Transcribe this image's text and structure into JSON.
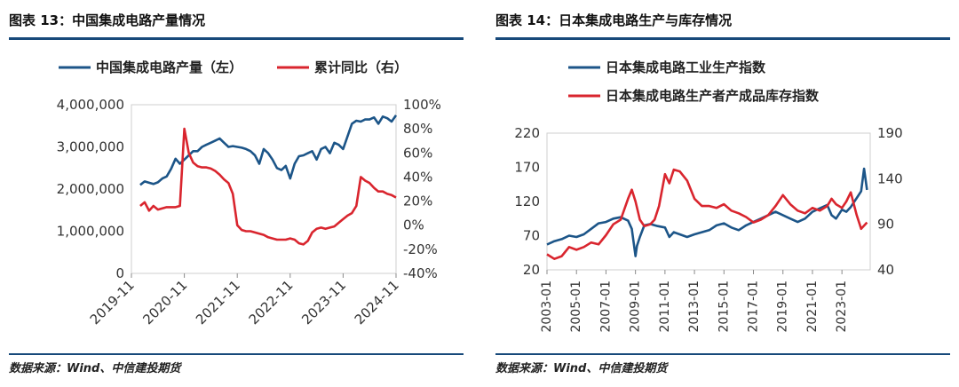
{
  "colors": {
    "blue": "#1c5588",
    "red": "#d9252e",
    "rule": "#17497a",
    "axis": "#9a9a9a"
  },
  "left": {
    "title": "图表 13：中国集成电路产量情况",
    "source": "数据来源：Wind、中信建投期货",
    "chart_data": {
      "type": "line",
      "series": [
        {
          "name": "中国集成电路产量（左）",
          "axis": "left",
          "x": [
            "2020-01",
            "2020-02",
            "2020-03",
            "2020-04",
            "2020-05",
            "2020-06",
            "2020-07",
            "2020-08",
            "2020-09",
            "2020-10",
            "2020-11",
            "2020-12",
            "2021-01",
            "2021-02",
            "2021-03",
            "2021-04",
            "2021-05",
            "2021-06",
            "2021-07",
            "2021-08",
            "2021-09",
            "2021-10",
            "2021-11",
            "2021-12",
            "2022-01",
            "2022-02",
            "2022-03",
            "2022-04",
            "2022-05",
            "2022-06",
            "2022-07",
            "2022-08",
            "2022-09",
            "2022-10",
            "2022-11",
            "2022-12",
            "2023-01",
            "2023-02",
            "2023-03",
            "2023-04",
            "2023-05",
            "2023-06",
            "2023-07",
            "2023-08",
            "2023-09",
            "2023-10",
            "2023-11",
            "2023-12",
            "2024-01",
            "2024-02",
            "2024-03",
            "2024-04",
            "2024-05",
            "2024-06",
            "2024-07",
            "2024-08",
            "2024-09",
            "2024-10",
            "2024-11"
          ],
          "values": [
            2100000,
            2180000,
            2150000,
            2120000,
            2160000,
            2250000,
            2300000,
            2480000,
            2720000,
            2600000,
            2700000,
            2800000,
            2900000,
            2900000,
            3000000,
            3050000,
            3100000,
            3150000,
            3200000,
            3100000,
            3000000,
            3020000,
            3000000,
            2980000,
            2950000,
            2900000,
            2800000,
            2600000,
            2950000,
            2850000,
            2700000,
            2500000,
            2450000,
            2550000,
            2250000,
            2600000,
            2780000,
            2800000,
            2850000,
            2900000,
            2700000,
            2950000,
            3000000,
            2850000,
            3100000,
            3050000,
            2950000,
            3250000,
            3550000,
            3620000,
            3600000,
            3650000,
            3650000,
            3700000,
            3550000,
            3720000,
            3680000,
            3600000,
            3750000
          ]
        },
        {
          "name": "累计同比（右）",
          "axis": "right",
          "x": [
            "2020-01",
            "2020-02",
            "2020-03",
            "2020-04",
            "2020-05",
            "2020-06",
            "2020-07",
            "2020-08",
            "2020-09",
            "2020-10",
            "2020-11",
            "2020-12",
            "2021-01",
            "2021-02",
            "2021-03",
            "2021-04",
            "2021-05",
            "2021-06",
            "2021-07",
            "2021-08",
            "2021-09",
            "2021-10",
            "2021-11",
            "2021-12",
            "2022-01",
            "2022-02",
            "2022-03",
            "2022-04",
            "2022-05",
            "2022-06",
            "2022-07",
            "2022-08",
            "2022-09",
            "2022-10",
            "2022-11",
            "2022-12",
            "2023-01",
            "2023-02",
            "2023-03",
            "2023-04",
            "2023-05",
            "2023-06",
            "2023-07",
            "2023-08",
            "2023-09",
            "2023-10",
            "2023-11",
            "2023-12",
            "2024-01",
            "2024-02",
            "2024-03",
            "2024-04",
            "2024-05",
            "2024-06",
            "2024-07",
            "2024-08",
            "2024-09",
            "2024-10",
            "2024-11"
          ],
          "values": [
            0.16,
            0.19,
            0.12,
            0.16,
            0.13,
            0.14,
            0.15,
            0.15,
            0.15,
            0.16,
            0.8,
            0.6,
            0.52,
            0.49,
            0.48,
            0.48,
            0.47,
            0.45,
            0.42,
            0.38,
            0.35,
            0.26,
            0.0,
            -0.04,
            -0.05,
            -0.05,
            -0.06,
            -0.07,
            -0.08,
            -0.1,
            -0.11,
            -0.12,
            -0.12,
            -0.12,
            -0.11,
            -0.12,
            -0.15,
            -0.16,
            -0.13,
            -0.06,
            -0.03,
            -0.02,
            -0.03,
            -0.02,
            -0.01,
            0.02,
            0.05,
            0.08,
            0.1,
            0.16,
            0.4,
            0.37,
            0.35,
            0.31,
            0.28,
            0.28,
            0.26,
            0.25,
            0.23
          ]
        }
      ],
      "x_ticks": [
        "2019-11",
        "2020-11",
        "2021-11",
        "2022-11",
        "2023-11",
        "2024-11"
      ],
      "y_left": {
        "ticks": [
          "4,000,000",
          "3,000,000",
          "2,000,000",
          "1,000,000",
          "0"
        ],
        "range": [
          0,
          4000000
        ]
      },
      "y_right": {
        "ticks": [
          "100%",
          "80%",
          "60%",
          "40%",
          "20%",
          "0%",
          "-20%",
          "-40%"
        ],
        "range": [
          -0.4,
          1.0
        ]
      },
      "x_range": [
        "2019-11",
        "2024-11"
      ],
      "legend_placement": "top"
    }
  },
  "right": {
    "title": "图表 14：日本集成电路生产与库存情况",
    "source": "数据来源：Wind、中信建投期货",
    "chart_data": {
      "type": "line",
      "series": [
        {
          "name": "日本集成电路工业生产指数",
          "axis": "left",
          "x": [
            2003.0,
            2003.5,
            2004.0,
            2004.5,
            2005.0,
            2005.5,
            2006.0,
            2006.5,
            2007.0,
            2007.5,
            2008.0,
            2008.5,
            2008.75,
            2009.0,
            2009.1,
            2009.3,
            2009.6,
            2010.0,
            2010.5,
            2011.0,
            2011.3,
            2011.6,
            2012.0,
            2012.5,
            2013.0,
            2013.5,
            2014.0,
            2014.5,
            2015.0,
            2015.5,
            2016.0,
            2016.5,
            2017.0,
            2017.5,
            2018.0,
            2018.5,
            2019.0,
            2019.5,
            2020.0,
            2020.5,
            2021.0,
            2021.5,
            2022.0,
            2022.3,
            2022.6,
            2023.0,
            2023.3,
            2023.6,
            2024.0,
            2024.3,
            2024.5,
            2024.7
          ],
          "values": [
            57,
            62,
            65,
            70,
            68,
            72,
            80,
            88,
            90,
            95,
            97,
            92,
            80,
            40,
            55,
            68,
            85,
            87,
            84,
            82,
            68,
            75,
            72,
            68,
            72,
            75,
            78,
            85,
            88,
            82,
            78,
            85,
            90,
            95,
            100,
            105,
            100,
            95,
            90,
            95,
            105,
            110,
            115,
            100,
            95,
            108,
            105,
            112,
            125,
            135,
            168,
            137
          ]
        },
        {
          "name": "日本集成电路生产者产成品库存指数",
          "axis": "right",
          "x": [
            2003.0,
            2003.5,
            2004.0,
            2004.5,
            2005.0,
            2005.5,
            2006.0,
            2006.5,
            2007.0,
            2007.5,
            2008.0,
            2008.5,
            2008.75,
            2009.0,
            2009.3,
            2009.6,
            2010.0,
            2010.3,
            2010.6,
            2011.0,
            2011.3,
            2011.6,
            2012.0,
            2012.5,
            2013.0,
            2013.5,
            2014.0,
            2014.5,
            2015.0,
            2015.5,
            2016.0,
            2016.5,
            2017.0,
            2017.5,
            2018.0,
            2018.5,
            2019.0,
            2019.5,
            2020.0,
            2020.5,
            2021.0,
            2021.5,
            2022.0,
            2022.3,
            2022.6,
            2023.0,
            2023.3,
            2023.6,
            2024.0,
            2024.3,
            2024.7
          ],
          "values": [
            57,
            52,
            55,
            65,
            62,
            65,
            70,
            68,
            78,
            90,
            95,
            118,
            128,
            115,
            95,
            88,
            90,
            95,
            110,
            145,
            135,
            150,
            148,
            138,
            118,
            110,
            110,
            108,
            112,
            105,
            102,
            98,
            92,
            95,
            100,
            110,
            122,
            112,
            105,
            102,
            108,
            105,
            110,
            118,
            112,
            108,
            115,
            125,
            100,
            85,
            92
          ]
        }
      ],
      "x_ticks": [
        "2003-01",
        "2005-01",
        "2007-01",
        "2009-01",
        "2011-01",
        "2013-01",
        "2015-01",
        "2017-01",
        "2019-01",
        "2021-01",
        "2023-01"
      ],
      "y_left": {
        "ticks": [
          "220",
          "170",
          "120",
          "70",
          "20"
        ],
        "range": [
          20,
          220
        ]
      },
      "y_right": {
        "ticks": [
          "190",
          "140",
          "90",
          "40"
        ],
        "range": [
          40,
          190
        ]
      },
      "x_range": [
        "2003-01",
        "2024-12"
      ],
      "legend_placement": "top"
    }
  }
}
